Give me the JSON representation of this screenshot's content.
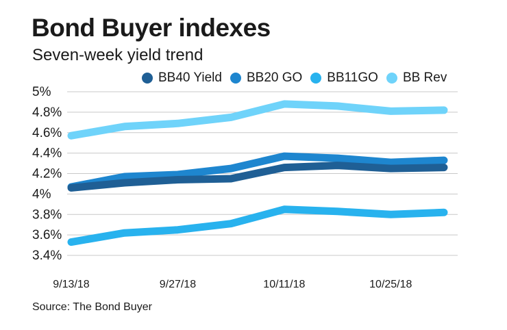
{
  "title": "Bond Buyer indexes",
  "subtitle": "Seven-week yield trend",
  "source": "Source: The Bond Buyer",
  "chart_data": {
    "type": "line",
    "x": [
      "9/13/18",
      "9/20/18",
      "9/27/18",
      "10/4/18",
      "10/11/18",
      "10/18/18",
      "10/25/18",
      "11/1/18"
    ],
    "x_tick_labels": [
      "9/13/18",
      "9/27/18",
      "10/11/18",
      "10/25/18"
    ],
    "x_tick_indices": [
      0,
      2,
      4,
      6
    ],
    "ylim": [
      3.3,
      5.0
    ],
    "y_ticks": [
      3.4,
      3.6,
      3.8,
      4.0,
      4.2,
      4.4,
      4.6,
      4.8,
      5.0
    ],
    "y_tick_labels": [
      "3.4%",
      "3.6%",
      "3.8%",
      "4%",
      "4.2%",
      "4.4%",
      "4.6%",
      "4.8%",
      "5%"
    ],
    "grid": true,
    "series": [
      {
        "name": "BB40 Yield",
        "color": "#1f5f95",
        "values": [
          4.06,
          4.11,
          4.14,
          4.15,
          4.26,
          4.28,
          4.25,
          4.26
        ]
      },
      {
        "name": "BB20 GO",
        "color": "#1e86cf",
        "values": [
          4.07,
          4.17,
          4.19,
          4.25,
          4.37,
          4.35,
          4.31,
          4.33
        ]
      },
      {
        "name": "BB11GO",
        "color": "#28b2ee",
        "values": [
          3.53,
          3.62,
          3.65,
          3.71,
          3.85,
          3.83,
          3.8,
          3.82
        ]
      },
      {
        "name": "BB Rev",
        "color": "#6fd3fa",
        "values": [
          4.57,
          4.66,
          4.69,
          4.75,
          4.88,
          4.86,
          4.81,
          4.82
        ]
      }
    ]
  }
}
